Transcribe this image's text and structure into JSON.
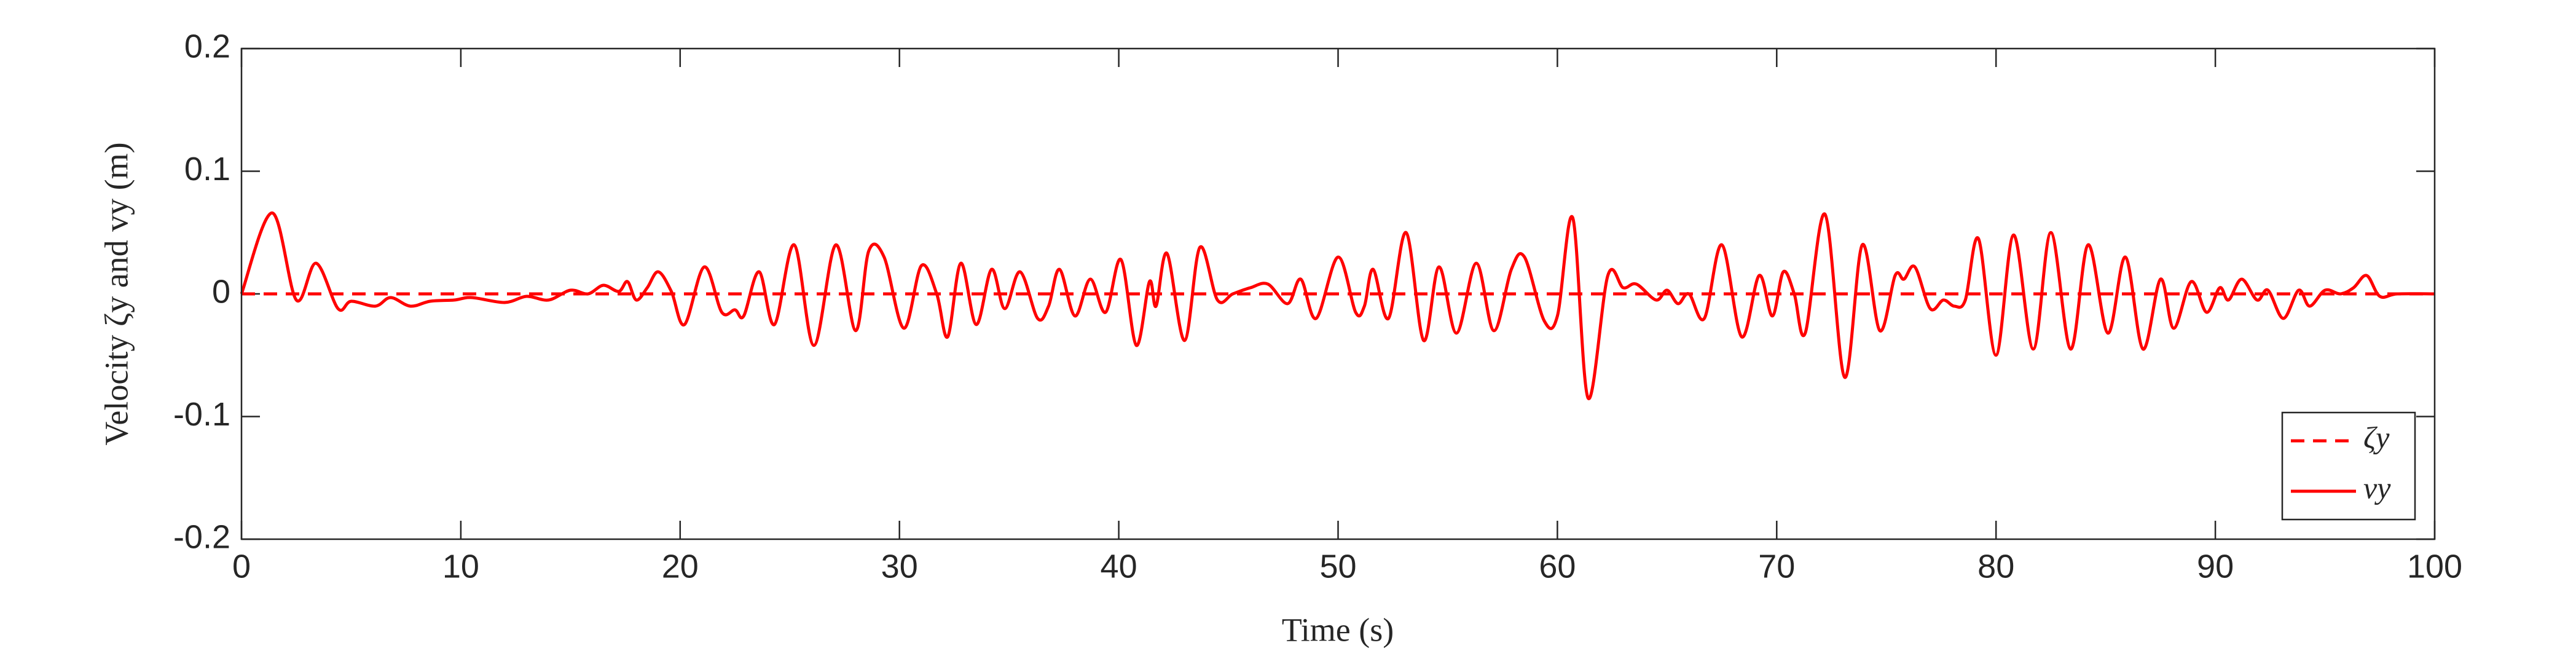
{
  "chart_data": {
    "type": "line",
    "xlabel": "Time (s)",
    "ylabel": "Velocity ζy and vy (m)",
    "xlim": [
      0,
      100
    ],
    "xticks": [
      0,
      10,
      20,
      30,
      40,
      50,
      60,
      70,
      80,
      90,
      100
    ],
    "ylim": [
      -0.2,
      0.2
    ],
    "yticks": [
      -0.2,
      -0.1,
      0,
      0.1,
      0.2
    ],
    "legend": "lower right",
    "box": true,
    "smooth": true,
    "series": [
      {
        "name": "ζy",
        "color": "#ff0000",
        "line_style": "dashed",
        "x": [
          0,
          100
        ],
        "values": [
          0,
          0
        ]
      },
      {
        "name": "vy",
        "color": "#ff0000",
        "line_style": "solid",
        "x": [
          0,
          1.4,
          2.5,
          3.4,
          4.4,
          5.0,
          6.1,
          6.8,
          7.7,
          8.6,
          9.7,
          10.5,
          12,
          13,
          14,
          15,
          15.8,
          16.5,
          17.2,
          17.6,
          18,
          18.5,
          19,
          19.6,
          20.2,
          21.1,
          21.9,
          22.5,
          22.9,
          23.6,
          24.3,
          25.2,
          26.1,
          27.1,
          28.0,
          28.6,
          29.3,
          30.2,
          31.0,
          31.7,
          32.2,
          32.8,
          33.5,
          34.2,
          34.8,
          35.5,
          36.3,
          36.8,
          37.3,
          38.0,
          38.7,
          39.4,
          40.1,
          40.8,
          41.4,
          41.7,
          42.2,
          43.0,
          43.7,
          44.5,
          45.2,
          46,
          46.8,
          47.7,
          48.3,
          49.0,
          50.0,
          50.8,
          51.2,
          51.6,
          52.3,
          53.1,
          53.9,
          54.6,
          55.4,
          56.3,
          57.1,
          57.9,
          58.5,
          59.4,
          60.0,
          60.7,
          61.4,
          62.3,
          63.0,
          63.6,
          64.5,
          65.0,
          65.5,
          66.0,
          66.7,
          67.5,
          68.4,
          69.2,
          69.8,
          70.3,
          70.8,
          71.3,
          72.2,
          73.1,
          73.9,
          74.7,
          75.4,
          75.8,
          76.3,
          77.0,
          77.6,
          78.1,
          78.6,
          79.2,
          80.0,
          80.8,
          81.7,
          82.5,
          83.4,
          84.2,
          85.1,
          85.9,
          86.7,
          87.5,
          88.1,
          88.9,
          89.6,
          90.2,
          90.6,
          91.2,
          91.9,
          92.4,
          93.1,
          93.8,
          94.3,
          95.0,
          95.7,
          96.3,
          96.9,
          97.5,
          98.3,
          100
        ],
        "values": [
          0,
          0.066,
          -0.005,
          0.025,
          -0.012,
          -0.006,
          -0.01,
          -0.003,
          -0.01,
          -0.006,
          -0.005,
          -0.003,
          -0.007,
          -0.002,
          -0.005,
          0.003,
          0.0,
          0.007,
          0.002,
          0.01,
          -0.005,
          0.005,
          0.018,
          0.002,
          -0.025,
          0.022,
          -0.015,
          -0.013,
          -0.018,
          0.018,
          -0.025,
          0.04,
          -0.042,
          0.04,
          -0.03,
          0.035,
          0.03,
          -0.028,
          0.023,
          0.0,
          -0.035,
          0.025,
          -0.025,
          0.02,
          -0.012,
          0.018,
          -0.02,
          -0.01,
          0.02,
          -0.018,
          0.012,
          -0.015,
          0.028,
          -0.042,
          0.01,
          -0.01,
          0.033,
          -0.038,
          0.038,
          -0.005,
          0.0,
          0.005,
          0.008,
          -0.008,
          0.012,
          -0.02,
          0.03,
          -0.015,
          -0.01,
          0.02,
          -0.02,
          0.05,
          -0.038,
          0.022,
          -0.032,
          0.025,
          -0.03,
          0.02,
          0.03,
          -0.022,
          -0.018,
          0.062,
          -0.085,
          0.015,
          0.005,
          0.008,
          -0.005,
          0.003,
          -0.008,
          0.0,
          -0.02,
          0.04,
          -0.035,
          0.015,
          -0.018,
          0.018,
          0.0,
          -0.032,
          0.065,
          -0.068,
          0.04,
          -0.03,
          0.015,
          0.012,
          0.022,
          -0.012,
          -0.005,
          -0.01,
          -0.005,
          0.045,
          -0.05,
          0.048,
          -0.045,
          0.05,
          -0.045,
          0.04,
          -0.032,
          0.03,
          -0.045,
          0.012,
          -0.028,
          0.01,
          -0.015,
          0.005,
          -0.005,
          0.012,
          -0.005,
          0.003,
          -0.02,
          0.003,
          -0.01,
          0.003,
          0.0,
          0.005,
          0.015,
          -0.002,
          0.0,
          0
        ]
      }
    ]
  }
}
